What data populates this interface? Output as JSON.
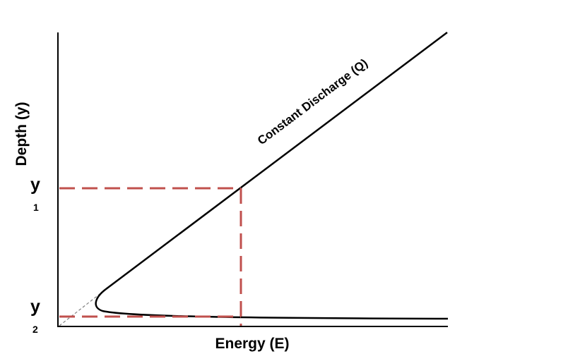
{
  "diagram": {
    "x_axis_label": "Energy (E)",
    "y_axis_label": "Depth (y)",
    "curve_label": "Constant Discharge (Q)",
    "depth_marks": [
      {
        "symbol": "y",
        "subscript": "1"
      },
      {
        "symbol": "y",
        "subscript": "2"
      }
    ]
  },
  "colors": {
    "axis": "#000000",
    "curve": "#000000",
    "guide_dashes": "#c0504d",
    "asymptote": "#808080"
  }
}
